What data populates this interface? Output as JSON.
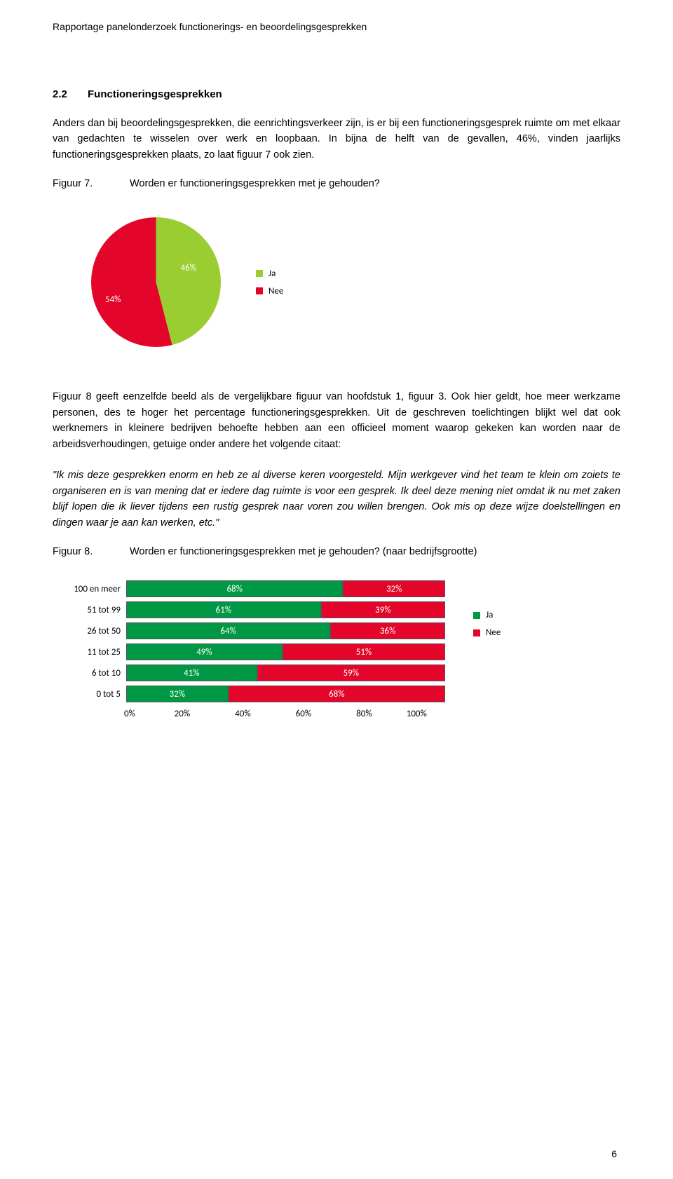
{
  "header": {
    "title": "Rapportage panelonderzoek functionerings- en beoordelingsgesprekken"
  },
  "section": {
    "number": "2.2",
    "title": "Functioneringsgesprekken"
  },
  "para1": "Anders dan bij beoordelingsgesprekken, die eenrichtingsverkeer zijn, is er bij een functioneringsgesprek ruimte om met elkaar van gedachten te wisselen over werk en loopbaan. In bijna de helft van de gevallen, 46%, vinden jaarlijks functioneringsgesprekken plaats, zo laat figuur 7 ook zien.",
  "fig7": {
    "label": "Figuur 7.",
    "caption": "Worden er functioneringsgesprekken met je gehouden?"
  },
  "pie": {
    "type": "pie",
    "slices": [
      {
        "label": "Ja",
        "value": 46,
        "display": "46%",
        "color": "#9acd32"
      },
      {
        "label": "Nee",
        "value": 54,
        "display": "54%",
        "color": "#e4052b"
      }
    ],
    "label_color": "#ffffff",
    "label_fontsize": 13
  },
  "para2": "Figuur 8 geeft eenzelfde beeld als de vergelijkbare figuur van hoofdstuk 1, figuur 3. Ook hier geldt, hoe meer werkzame personen, des te hoger het percentage functioneringsgesprekken. Uit de geschreven toelichtingen blijkt wel dat ook werknemers in kleinere bedrijven behoefte hebben aan een officieel moment waarop gekeken kan worden naar de arbeidsverhoudingen, getuige onder andere het volgende citaat:",
  "quote": "\"Ik mis deze gesprekken enorm en heb ze al diverse keren voorgesteld. Mijn werkgever vind het team te klein om zoiets te organiseren en is van mening dat er iedere dag ruimte is voor een gesprek. Ik deel deze mening niet omdat ik nu met zaken blijf lopen die ik liever tijdens een rustig gesprek naar voren zou willen brengen. Ook mis op deze wijze doelstellingen en dingen waar je aan kan werken, etc.\"",
  "fig8": {
    "label": "Figuur 8.",
    "caption": "Worden er functioneringsgesprekken met je gehouden? (naar bedrijfsgrootte)"
  },
  "bars": {
    "type": "stacked-bar-horizontal",
    "categories": [
      "100 en meer",
      "51 tot 99",
      "26 tot 50",
      "11 tot 25",
      "6 tot 10",
      "0 tot 5"
    ],
    "series": [
      {
        "name": "Ja",
        "color": "#009845",
        "values": [
          68,
          61,
          64,
          49,
          41,
          32
        ]
      },
      {
        "name": "Nee",
        "color": "#e4052b",
        "values": [
          32,
          39,
          36,
          51,
          59,
          68
        ]
      }
    ],
    "value_suffix": "%",
    "xlim": [
      0,
      100
    ],
    "xtick_step": 20,
    "xticks": [
      "0%",
      "20%",
      "40%",
      "60%",
      "80%",
      "100%"
    ],
    "bar_label_color": "#ffffff",
    "bar_label_fontsize": 13,
    "axis_fontsize": 13
  },
  "page_number": "6"
}
